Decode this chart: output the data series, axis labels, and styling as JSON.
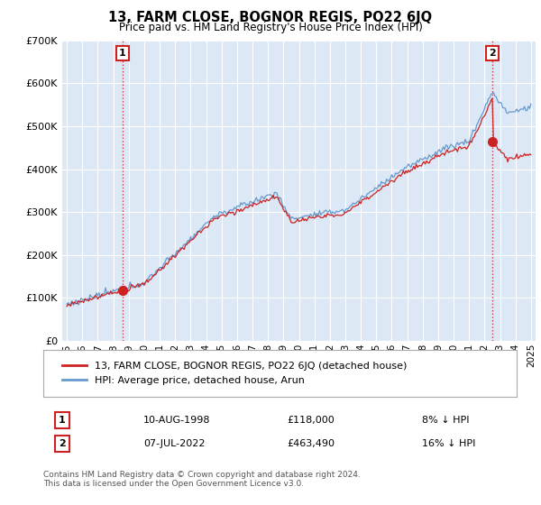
{
  "title": "13, FARM CLOSE, BOGNOR REGIS, PO22 6JQ",
  "subtitle": "Price paid vs. HM Land Registry's House Price Index (HPI)",
  "legend_line1": "13, FARM CLOSE, BOGNOR REGIS, PO22 6JQ (detached house)",
  "legend_line2": "HPI: Average price, detached house, Arun",
  "annotation1_label": "1",
  "annotation1_date": "10-AUG-1998",
  "annotation1_price": "£118,000",
  "annotation1_hpi": "8% ↓ HPI",
  "annotation1_year": 1998.6,
  "annotation1_value": 118000,
  "annotation2_label": "2",
  "annotation2_date": "07-JUL-2022",
  "annotation2_price": "£463,490",
  "annotation2_hpi": "16% ↓ HPI",
  "annotation2_year": 2022.5,
  "annotation2_value": 463490,
  "footer": "Contains HM Land Registry data © Crown copyright and database right 2024.\nThis data is licensed under the Open Government Licence v3.0.",
  "line_color_property": "#cc2222",
  "line_color_hpi": "#6699cc",
  "dashed_color": "#cc2222",
  "plot_bg_color": "#dce8f5",
  "ylim": [
    0,
    700000
  ],
  "yticks": [
    0,
    100000,
    200000,
    300000,
    400000,
    500000,
    600000,
    700000
  ],
  "background_color": "#ffffff",
  "grid_color": "#ffffff"
}
